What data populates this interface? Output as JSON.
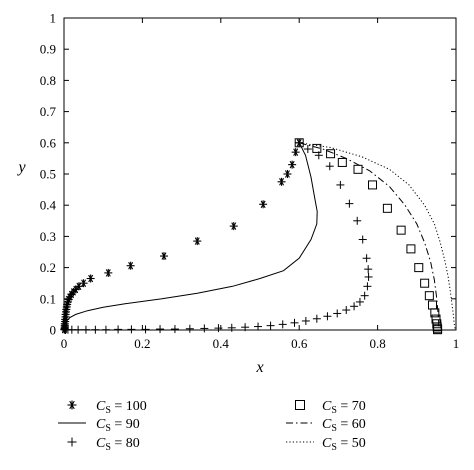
{
  "chart_data": {
    "type": "scatter",
    "xlabel": "x",
    "ylabel": "y",
    "xlim": [
      0,
      1
    ],
    "ylim": [
      0,
      1
    ],
    "xticks": [
      "0",
      "0.2",
      "0.4",
      "0.6",
      "0.8",
      "1"
    ],
    "yticks": [
      "0",
      "0.1",
      "0.2",
      "0.3",
      "0.4",
      "0.5",
      "0.6",
      "0.7",
      "0.8",
      "0.9",
      "1"
    ],
    "grid": false,
    "legend_position": "bottom",
    "series": [
      {
        "name": "C_S = 100",
        "label_main": "C",
        "label_sub": "S",
        "label_rest": " = 100",
        "marker": "asterisk",
        "line": "none",
        "x": [
          0.6,
          0.591,
          0.582,
          0.57,
          0.555,
          0.508,
          0.433,
          0.34,
          0.255,
          0.17,
          0.113,
          0.068,
          0.05,
          0.038,
          0.03,
          0.024,
          0.019,
          0.015,
          0.012,
          0.01,
          0.008,
          0.007,
          0.006,
          0.005,
          0.004,
          0.004,
          0.003,
          0.003,
          0.002,
          0.002,
          0.002,
          0.002,
          0.001,
          0.001
        ],
        "y": [
          0.6,
          0.57,
          0.53,
          0.5,
          0.475,
          0.403,
          0.333,
          0.285,
          0.237,
          0.206,
          0.183,
          0.165,
          0.15,
          0.14,
          0.13,
          0.122,
          0.114,
          0.106,
          0.098,
          0.09,
          0.082,
          0.074,
          0.066,
          0.058,
          0.05,
          0.042,
          0.034,
          0.027,
          0.02,
          0.015,
          0.01,
          0.006,
          0.003,
          0.001
        ]
      },
      {
        "name": "C_S = 90",
        "label_main": "C",
        "label_sub": "S",
        "label_rest": " = 90",
        "marker": "none",
        "line": "solid",
        "x": [
          0.6,
          0.616,
          0.63,
          0.64,
          0.646,
          0.645,
          0.63,
          0.6,
          0.56,
          0.5,
          0.43,
          0.34,
          0.25,
          0.16,
          0.1,
          0.06,
          0.03,
          0.015,
          0.008,
          0.004,
          0.002
        ],
        "y": [
          0.6,
          0.56,
          0.49,
          0.42,
          0.38,
          0.34,
          0.29,
          0.23,
          0.19,
          0.165,
          0.14,
          0.118,
          0.1,
          0.085,
          0.073,
          0.062,
          0.05,
          0.04,
          0.03,
          0.018,
          0.008
        ]
      },
      {
        "name": "C_S = 80",
        "label_main": "C",
        "label_sub": "S",
        "label_rest": " = 80",
        "marker": "plus",
        "line": "none",
        "x": [
          0.6,
          0.622,
          0.65,
          0.678,
          0.705,
          0.728,
          0.748,
          0.762,
          0.772,
          0.776,
          0.777,
          0.774,
          0.767,
          0.755,
          0.74,
          0.72,
          0.697,
          0.672,
          0.645,
          0.617,
          0.588,
          0.558,
          0.527,
          0.495,
          0.462,
          0.428,
          0.394,
          0.358,
          0.321,
          0.283,
          0.245,
          0.208,
          0.172,
          0.138,
          0.107,
          0.08,
          0.056,
          0.036,
          0.02,
          0.01,
          0.004
        ],
        "y": [
          0.6,
          0.58,
          0.56,
          0.525,
          0.465,
          0.405,
          0.35,
          0.29,
          0.23,
          0.195,
          0.17,
          0.14,
          0.11,
          0.09,
          0.076,
          0.064,
          0.053,
          0.044,
          0.036,
          0.029,
          0.023,
          0.018,
          0.014,
          0.011,
          0.009,
          0.007,
          0.006,
          0.005,
          0.004,
          0.003,
          0.003,
          0.002,
          0.002,
          0.002,
          0.001,
          0.001,
          0.001,
          0.001,
          0.001,
          0.001,
          0.0
        ]
      },
      {
        "name": "C_S = 70",
        "label_main": "C",
        "label_sub": "S",
        "label_rest": " = 70",
        "marker": "square",
        "line": "none",
        "x": [
          0.6,
          0.645,
          0.68,
          0.71,
          0.75,
          0.787,
          0.825,
          0.86,
          0.885,
          0.905,
          0.92,
          0.932,
          0.94,
          0.946,
          0.949,
          0.951,
          0.952,
          0.953,
          0.953
        ],
        "y": [
          0.6,
          0.582,
          0.565,
          0.537,
          0.515,
          0.465,
          0.39,
          0.32,
          0.26,
          0.2,
          0.15,
          0.11,
          0.08,
          0.055,
          0.035,
          0.02,
          0.01,
          0.004,
          0.001
        ]
      },
      {
        "name": "C_S = 60",
        "label_main": "C",
        "label_sub": "S",
        "label_rest": " = 60",
        "marker": "none",
        "line": "dashdot",
        "x": [
          0.6,
          0.66,
          0.72,
          0.78,
          0.83,
          0.87,
          0.9,
          0.92,
          0.935,
          0.945,
          0.95,
          0.953,
          0.955,
          0.956,
          0.957
        ],
        "y": [
          0.6,
          0.58,
          0.55,
          0.51,
          0.46,
          0.4,
          0.34,
          0.28,
          0.22,
          0.16,
          0.11,
          0.07,
          0.04,
          0.015,
          0.0
        ]
      },
      {
        "name": "C_S = 50",
        "label_main": "C",
        "label_sub": "S",
        "label_rest": " = 50",
        "marker": "none",
        "line": "dotted",
        "x": [
          0.6,
          0.68,
          0.76,
          0.83,
          0.88,
          0.92,
          0.945,
          0.96,
          0.972,
          0.98,
          0.986,
          0.99,
          0.993,
          0.995,
          0.997,
          0.998
        ],
        "y": [
          0.6,
          0.585,
          0.555,
          0.515,
          0.465,
          0.4,
          0.34,
          0.28,
          0.22,
          0.17,
          0.12,
          0.08,
          0.05,
          0.025,
          0.008,
          0.0
        ]
      }
    ]
  }
}
